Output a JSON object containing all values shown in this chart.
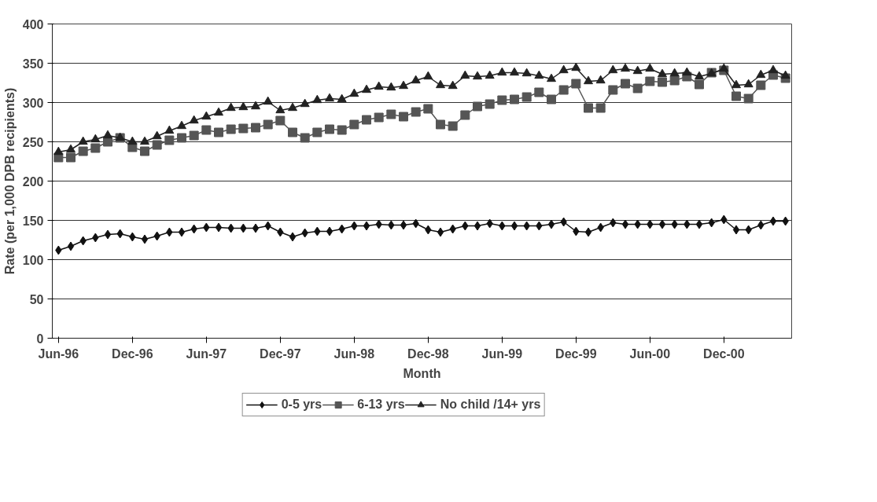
{
  "chart_data": {
    "type": "line",
    "xlabel": "Month",
    "ylabel": "Rate (per 1,000 DPB recipients)",
    "categories": [
      "Jun-96",
      null,
      null,
      null,
      null,
      null,
      "Dec-96",
      null,
      null,
      null,
      null,
      null,
      "Jun-97",
      null,
      null,
      null,
      null,
      null,
      "Dec-97",
      null,
      null,
      null,
      null,
      null,
      "Jun-98",
      null,
      null,
      null,
      null,
      null,
      "Dec-98",
      null,
      null,
      null,
      null,
      null,
      "Jun-99",
      null,
      null,
      null,
      null,
      null,
      "Dec-99",
      null,
      null,
      null,
      null,
      null,
      "Jun-00",
      null,
      null,
      null,
      null,
      null,
      "Dec-00",
      null,
      null,
      null,
      null,
      null
    ],
    "series": [
      {
        "name": "0-5 yrs",
        "color": "#111111",
        "marker": "diamond",
        "values": [
          112,
          117,
          124,
          128,
          132,
          133,
          129,
          126,
          130,
          135,
          135,
          139,
          141,
          141,
          140,
          140,
          140,
          143,
          135,
          129,
          134,
          136,
          136,
          139,
          143,
          143,
          145,
          144,
          144,
          146,
          138,
          135,
          139,
          143,
          143,
          146,
          143,
          143,
          143,
          143,
          145,
          148,
          136,
          135,
          141,
          147,
          145,
          145,
          145,
          145,
          145,
          145,
          145,
          147,
          151,
          138,
          138,
          144,
          149,
          149
        ]
      },
      {
        "name": "6-13 yrs",
        "color": "#555555",
        "marker": "square",
        "values": [
          230,
          230,
          238,
          242,
          250,
          255,
          243,
          238,
          246,
          252,
          255,
          258,
          265,
          262,
          266,
          267,
          268,
          272,
          277,
          262,
          255,
          262,
          266,
          265,
          272,
          278,
          281,
          285,
          282,
          288,
          292,
          272,
          270,
          284,
          295,
          298,
          303,
          304,
          307,
          313,
          304,
          316,
          324,
          293,
          293,
          316,
          324,
          318,
          327,
          326,
          328,
          333,
          323,
          338,
          341,
          308,
          305,
          322,
          335,
          331
        ]
      },
      {
        "name": "No child /14+ yrs",
        "color": "#222222",
        "marker": "triangle",
        "values": [
          237,
          240,
          250,
          253,
          258,
          255,
          250,
          250,
          257,
          264,
          270,
          277,
          282,
          287,
          293,
          294,
          295,
          301,
          290,
          293,
          298,
          303,
          305,
          304,
          311,
          316,
          320,
          319,
          321,
          328,
          333,
          322,
          321,
          334,
          333,
          334,
          338,
          338,
          337,
          334,
          330,
          341,
          344,
          327,
          328,
          341,
          343,
          340,
          343,
          336,
          337,
          338,
          333,
          337,
          343,
          322,
          323,
          335,
          341,
          334
        ]
      }
    ],
    "ylim": [
      0,
      400
    ],
    "yticks": [
      0,
      50,
      100,
      150,
      200,
      250,
      300,
      350,
      400
    ],
    "grid": "y",
    "legend": "bottom",
    "line_style": "solid"
  }
}
